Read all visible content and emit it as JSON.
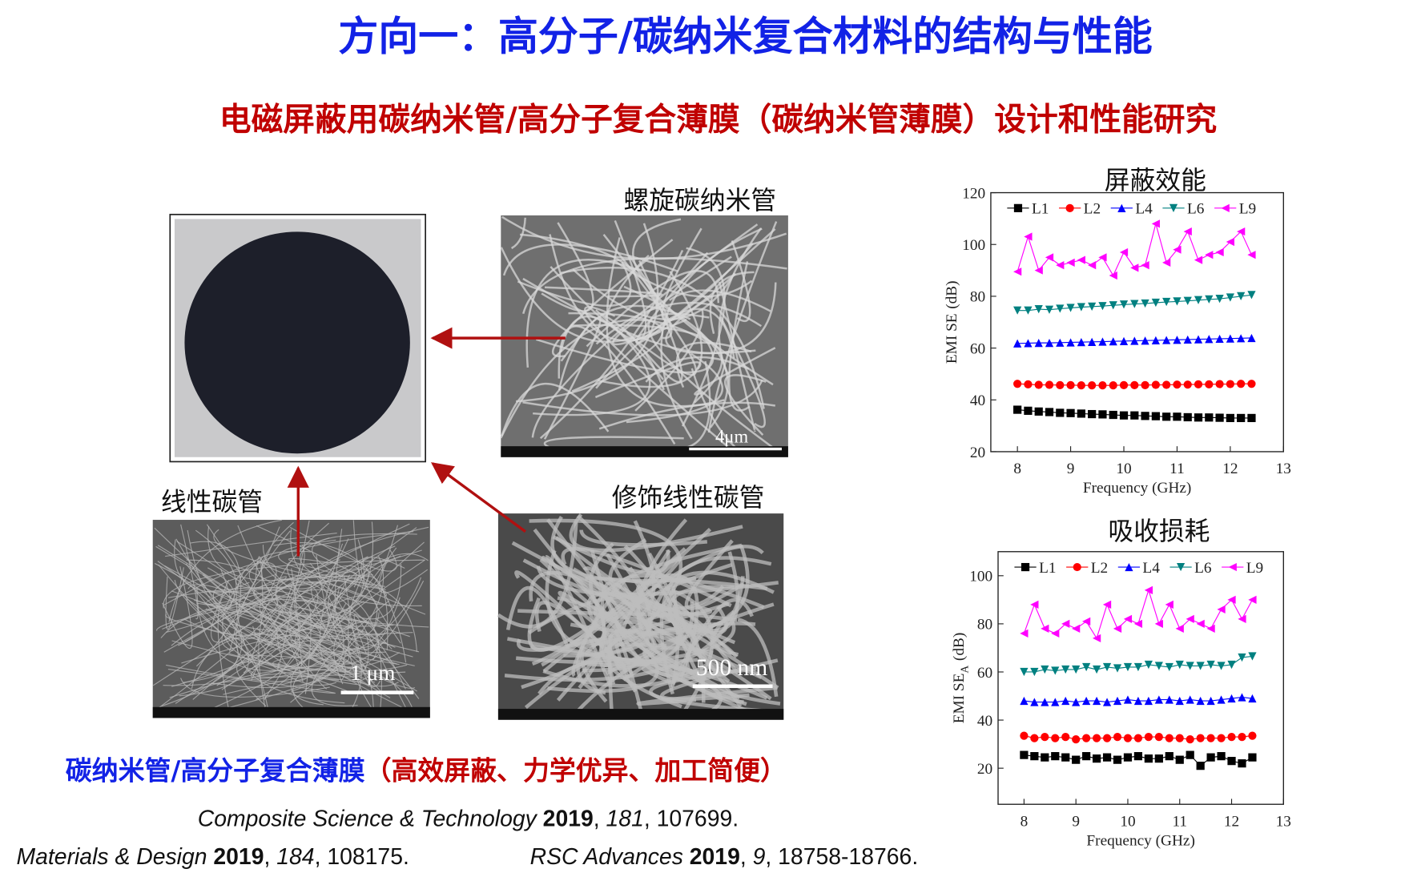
{
  "header": {
    "title": "方向一：高分子/碳纳米复合材料的结构与性能",
    "subtitle": "电磁屏蔽用碳纳米管/高分子复合薄膜（碳纳米管薄膜）设计和性能研究"
  },
  "figures": {
    "helical": {
      "label": "螺旋碳纳米管",
      "scale": "4μm"
    },
    "linear": {
      "label": "线性碳管",
      "scale": "1 μm"
    },
    "modified": {
      "label": "修饰线性碳管",
      "scale": "500 nm"
    }
  },
  "caption": {
    "main": "碳纳米管/高分子复合薄膜",
    "note": "（高效屏蔽、力学优异、加工简便）"
  },
  "references": [
    [
      {
        "text": "Composite Science & Technology ",
        "style": "italic"
      },
      {
        "text": "2019",
        "style": "bold"
      },
      {
        "text": ", ",
        "style": "normal"
      },
      {
        "text": "181",
        "style": "italic"
      },
      {
        "text": ", 107699.",
        "style": "normal"
      }
    ],
    [
      {
        "text": "Materials & Design ",
        "style": "italic"
      },
      {
        "text": "2019",
        "style": "bold"
      },
      {
        "text": ", ",
        "style": "normal"
      },
      {
        "text": "184",
        "style": "italic"
      },
      {
        "text": ", 108175.",
        "style": "normal"
      }
    ],
    [
      {
        "text": "RSC Advances ",
        "style": "italic"
      },
      {
        "text": "2019",
        "style": "bold"
      },
      {
        "text": ", ",
        "style": "normal"
      },
      {
        "text": "9",
        "style": "italic"
      },
      {
        "text": ", 18758-18766.",
        "style": "normal"
      }
    ]
  ],
  "chart_data": [
    {
      "type": "line",
      "title": "屏蔽效能",
      "x_label": "Frequency (GHz)",
      "y_label": "EMI SE",
      "y_label_unit": "(dB)",
      "xlim": [
        7.5,
        13
      ],
      "xticks": [
        8,
        9,
        10,
        11,
        12,
        13
      ],
      "ylim": [
        20,
        120
      ],
      "yticks": [
        20,
        40,
        60,
        80,
        100,
        120
      ],
      "x": [
        8.0,
        8.2,
        8.4,
        8.6,
        8.8,
        9.0,
        9.2,
        9.4,
        9.6,
        9.8,
        10.0,
        10.2,
        10.4,
        10.6,
        10.8,
        11.0,
        11.2,
        11.4,
        11.6,
        11.8,
        12.0,
        12.2,
        12.4
      ],
      "series": [
        {
          "name": "L1",
          "color": "#000000",
          "marker": "square",
          "values": [
            36.2,
            35.8,
            35.5,
            35.3,
            35.0,
            34.9,
            34.7,
            34.5,
            34.4,
            34.2,
            34.0,
            34.0,
            33.8,
            33.7,
            33.5,
            33.5,
            33.3,
            33.2,
            33.2,
            33.1,
            33.0,
            33.0,
            33.0
          ]
        },
        {
          "name": "L2",
          "color": "#ff0000",
          "marker": "circle",
          "values": [
            46.2,
            46.0,
            45.8,
            45.8,
            45.7,
            45.7,
            45.6,
            45.6,
            45.6,
            45.6,
            45.7,
            45.7,
            45.7,
            45.8,
            45.8,
            45.9,
            45.9,
            46.0,
            46.0,
            46.1,
            46.1,
            46.2,
            46.2
          ]
        },
        {
          "name": "L4",
          "color": "#0000ff",
          "marker": "triangle-up",
          "values": [
            61.8,
            61.9,
            62.0,
            62.0,
            62.1,
            62.2,
            62.3,
            62.4,
            62.5,
            62.6,
            62.7,
            62.8,
            62.9,
            63.0,
            63.1,
            63.2,
            63.3,
            63.4,
            63.5,
            63.6,
            63.7,
            63.8,
            63.9
          ]
        },
        {
          "name": "L6",
          "color": "#008080",
          "marker": "triangle-down",
          "values": [
            74.5,
            74.5,
            75.0,
            74.8,
            75.2,
            75.5,
            75.8,
            76.0,
            76.2,
            76.5,
            76.8,
            77.0,
            77.2,
            77.5,
            77.8,
            78.0,
            78.2,
            78.5,
            78.8,
            79.0,
            79.5,
            80.0,
            80.5
          ]
        },
        {
          "name": "L9",
          "color": "#ff00ff",
          "marker": "triangle-left",
          "values": [
            89.5,
            103,
            90,
            95,
            92,
            93,
            94,
            92,
            95,
            88,
            97,
            91,
            92,
            108,
            93,
            98,
            105,
            94,
            96,
            97,
            101,
            105,
            96
          ]
        }
      ]
    },
    {
      "type": "line",
      "title": "吸收损耗",
      "x_label": "Frequency (GHz)",
      "y_label": "EMI SE",
      "y_label_sub": "A",
      "y_label_unit": "(dB)",
      "xlim": [
        7.5,
        13
      ],
      "xticks": [
        8,
        9,
        10,
        11,
        12,
        13
      ],
      "ylim": [
        5,
        110
      ],
      "yticks": [
        20,
        40,
        60,
        80,
        100
      ],
      "x": [
        8.0,
        8.2,
        8.4,
        8.6,
        8.8,
        9.0,
        9.2,
        9.4,
        9.6,
        9.8,
        10.0,
        10.2,
        10.4,
        10.6,
        10.8,
        11.0,
        11.2,
        11.4,
        11.6,
        11.8,
        12.0,
        12.2,
        12.4
      ],
      "series": [
        {
          "name": "L1",
          "color": "#000000",
          "marker": "square",
          "values": [
            25.5,
            25,
            24.5,
            25,
            24.5,
            23.5,
            25,
            24,
            24.5,
            23.5,
            24.5,
            25,
            24,
            24,
            25,
            23.5,
            25.5,
            21,
            24.5,
            25,
            23,
            22,
            24.5
          ]
        },
        {
          "name": "L2",
          "color": "#ff0000",
          "marker": "circle",
          "values": [
            33.5,
            32.5,
            33,
            32.5,
            33,
            32,
            32.5,
            32.5,
            32.5,
            33,
            32.5,
            32.5,
            33,
            33,
            32.5,
            32.5,
            32,
            32.5,
            32.5,
            32.5,
            33,
            33,
            33.5
          ]
        },
        {
          "name": "L4",
          "color": "#0000ff",
          "marker": "triangle-up",
          "values": [
            48,
            47.5,
            47.5,
            47.5,
            48,
            47.5,
            48,
            48,
            47.5,
            48,
            48.5,
            48,
            48,
            48.5,
            48.5,
            48,
            48.5,
            48,
            48,
            48.5,
            49,
            49.5,
            49
          ]
        },
        {
          "name": "L6",
          "color": "#008080",
          "marker": "triangle-down",
          "values": [
            60,
            60,
            61,
            60.5,
            61,
            61,
            62,
            61,
            62,
            61.5,
            62,
            62,
            63,
            62.5,
            62,
            63,
            62.5,
            62.5,
            63,
            62.5,
            63,
            66,
            66.5
          ]
        },
        {
          "name": "L9",
          "color": "#ff00ff",
          "marker": "triangle-left",
          "values": [
            76,
            88,
            78,
            76,
            80,
            78,
            81,
            74,
            88,
            78,
            82,
            80,
            94,
            80,
            88,
            78,
            82,
            80,
            78,
            86,
            90,
            82,
            90
          ]
        }
      ]
    }
  ]
}
